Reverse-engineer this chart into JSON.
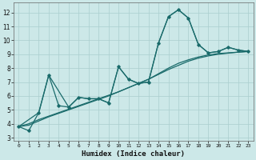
{
  "xlabel": "Humidex (Indice chaleur)",
  "background_color": "#cce8e8",
  "grid_color": "#aacece",
  "line_color": "#1a6b6b",
  "xlim": [
    -0.5,
    23.5
  ],
  "ylim": [
    2.8,
    12.7
  ],
  "xticks": [
    0,
    1,
    2,
    3,
    4,
    5,
    6,
    7,
    8,
    9,
    10,
    11,
    12,
    13,
    14,
    15,
    16,
    17,
    18,
    19,
    20,
    21,
    22,
    23
  ],
  "yticks": [
    3,
    4,
    5,
    6,
    7,
    8,
    9,
    10,
    11,
    12
  ],
  "curve1_x": [
    0,
    1,
    2,
    3,
    4,
    5,
    6,
    7,
    8,
    9,
    10,
    11,
    12,
    13,
    14,
    15,
    16,
    17,
    18,
    19,
    20,
    21,
    22,
    23
  ],
  "curve1_y": [
    3.8,
    3.5,
    4.8,
    7.5,
    5.3,
    5.2,
    5.9,
    5.8,
    5.8,
    5.5,
    8.1,
    7.2,
    6.9,
    7.0,
    9.8,
    11.7,
    12.2,
    11.6,
    9.7,
    9.1,
    9.2,
    9.5,
    9.3,
    9.2
  ],
  "curve2_x": [
    0,
    2,
    3,
    5,
    6,
    7,
    8,
    9,
    10,
    11,
    12,
    13,
    14,
    15,
    16,
    17,
    18,
    19,
    20,
    21,
    22,
    23
  ],
  "curve2_y": [
    3.8,
    4.8,
    7.5,
    5.2,
    5.9,
    5.8,
    5.8,
    5.5,
    8.1,
    7.2,
    6.9,
    7.0,
    9.8,
    11.7,
    12.2,
    11.6,
    9.7,
    9.1,
    9.2,
    9.5,
    9.3,
    9.2
  ],
  "curve3_x": [
    0,
    1,
    2,
    3,
    4,
    5,
    6,
    7,
    8,
    9,
    10,
    11,
    12,
    13,
    14,
    15,
    16,
    17,
    18,
    19,
    20,
    21,
    22,
    23
  ],
  "curve3_y": [
    3.8,
    4.0,
    4.3,
    4.55,
    4.8,
    5.05,
    5.3,
    5.55,
    5.8,
    6.05,
    6.3,
    6.6,
    6.9,
    7.2,
    7.6,
    8.0,
    8.35,
    8.6,
    8.8,
    8.95,
    9.05,
    9.1,
    9.15,
    9.2
  ],
  "curve4_x": [
    0,
    1,
    2,
    3,
    4,
    5,
    6,
    7,
    8,
    9,
    10,
    11,
    12,
    13,
    14,
    15,
    16,
    17,
    18,
    19,
    20,
    21,
    22,
    23
  ],
  "curve4_y": [
    3.8,
    3.9,
    4.2,
    4.5,
    4.75,
    5.0,
    5.25,
    5.5,
    5.75,
    6.0,
    6.3,
    6.6,
    6.9,
    7.2,
    7.55,
    7.9,
    8.2,
    8.5,
    8.72,
    8.88,
    9.0,
    9.08,
    9.15,
    9.2
  ]
}
